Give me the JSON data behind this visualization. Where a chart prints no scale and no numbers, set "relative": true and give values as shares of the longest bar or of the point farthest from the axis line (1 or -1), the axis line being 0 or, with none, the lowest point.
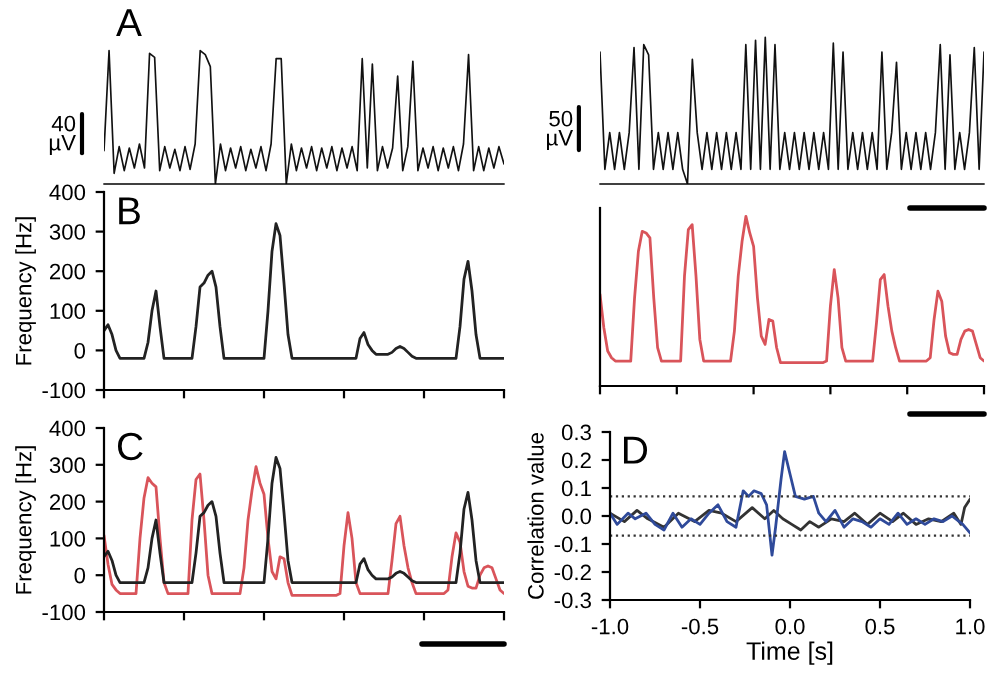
{
  "chart_data": [
    {
      "type": "line",
      "title": "A",
      "relative": true,
      "annotations": [
        "40\nµV"
      ],
      "tick_labels": false,
      "categories": [
        null,
        null,
        null,
        null,
        null,
        null,
        null,
        null,
        null,
        null,
        null,
        null,
        null,
        null,
        null,
        null,
        null,
        null,
        null,
        null,
        null,
        null,
        null,
        null,
        null,
        null,
        null,
        null,
        null,
        null,
        null,
        null,
        null,
        null,
        null,
        null,
        null,
        null,
        null,
        null,
        null,
        null,
        null,
        null,
        null,
        null,
        null,
        null,
        null,
        null,
        null,
        null,
        null,
        null,
        null,
        null,
        null,
        null,
        null,
        null,
        null,
        null,
        null,
        null,
        null,
        null,
        null,
        null,
        null,
        null,
        null,
        null,
        null,
        null,
        null,
        null,
        null,
        null,
        null,
        null
      ],
      "series": [
        {
          "color": "#111111",
          "values": [
            0.25,
            1.0,
            0.08,
            0.28,
            0.1,
            0.27,
            0.12,
            0.3,
            0.12,
            0.98,
            0.95,
            0.1,
            0.28,
            0.12,
            0.26,
            0.1,
            0.28,
            0.11,
            0.3,
            1.0,
            0.97,
            0.88,
            0.0,
            0.3,
            0.1,
            0.27,
            0.12,
            0.28,
            0.1,
            0.26,
            0.12,
            0.28,
            0.1,
            0.3,
            0.94,
            0.94,
            0.0,
            0.3,
            0.1,
            0.27,
            0.12,
            0.28,
            0.1,
            0.27,
            0.12,
            0.28,
            0.1,
            0.27,
            0.12,
            0.28,
            0.1,
            0.94,
            0.12,
            0.9,
            0.1,
            0.28,
            0.12,
            0.27,
            0.81,
            0.1,
            0.28,
            0.92,
            0.1,
            0.27,
            0.12,
            0.28,
            0.1,
            0.27,
            0.12,
            0.28,
            0.1,
            0.3,
            0.97,
            0.1,
            0.28,
            0.1,
            0.27,
            0.12,
            0.28,
            0.15
          ]
        }
      ]
    },
    {
      "type": "line",
      "relative": true,
      "annotations": [
        "50\nµV"
      ],
      "tick_labels": false,
      "categories": [
        null,
        null,
        null,
        null,
        null,
        null,
        null,
        null,
        null,
        null,
        null,
        null,
        null,
        null,
        null,
        null,
        null,
        null,
        null,
        null,
        null,
        null,
        null,
        null,
        null,
        null,
        null,
        null,
        null,
        null,
        null,
        null,
        null,
        null,
        null,
        null,
        null,
        null,
        null,
        null,
        null,
        null,
        null,
        null,
        null,
        null,
        null,
        null,
        null,
        null,
        null,
        null,
        null,
        null,
        null,
        null,
        null,
        null,
        null,
        null,
        null,
        null,
        null,
        null,
        null,
        null,
        null,
        null,
        null,
        null,
        null,
        null,
        null,
        null,
        null,
        null,
        null,
        null,
        null,
        null
      ],
      "series": [
        {
          "color": "#111111",
          "values": [
            0.9,
            0.1,
            0.35,
            0.1,
            0.35,
            0.1,
            0.35,
            0.93,
            0.1,
            0.95,
            0.88,
            0.1,
            0.35,
            0.1,
            0.35,
            0.1,
            0.35,
            0.1,
            0.0,
            0.85,
            0.35,
            0.1,
            0.35,
            0.1,
            0.35,
            0.1,
            0.35,
            0.1,
            0.35,
            0.1,
            0.95,
            0.1,
            0.98,
            0.1,
            1.0,
            0.1,
            0.95,
            0.1,
            0.35,
            0.1,
            0.35,
            0.1,
            0.35,
            0.1,
            0.35,
            0.1,
            0.35,
            0.1,
            0.96,
            0.1,
            0.9,
            0.1,
            0.35,
            0.1,
            0.35,
            0.1,
            0.35,
            0.1,
            0.9,
            0.1,
            0.35,
            0.83,
            0.1,
            0.35,
            0.1,
            0.35,
            0.1,
            0.35,
            0.1,
            0.35,
            0.95,
            0.1,
            0.88,
            0.1,
            0.35,
            0.1,
            0.35,
            0.93,
            0.1,
            0.9
          ]
        }
      ]
    },
    {
      "type": "line",
      "title": "B",
      "ylabel": "Frequency [Hz]",
      "ylim": [
        -100,
        400
      ],
      "yticks": [
        -100,
        0,
        100,
        200,
        300,
        400
      ],
      "tick_labels": "y",
      "categories": [
        null,
        null,
        null,
        null,
        null,
        null,
        null,
        null,
        null,
        null,
        null,
        null,
        null,
        null,
        null,
        null,
        null,
        null,
        null,
        null,
        null,
        null,
        null,
        null,
        null,
        null,
        null,
        null,
        null,
        null,
        null,
        null,
        null,
        null,
        null,
        null,
        null,
        null,
        null,
        null,
        null,
        null,
        null,
        null,
        null,
        null,
        null,
        null,
        null,
        null,
        null,
        null,
        null,
        null,
        null,
        null,
        null,
        null,
        null,
        null,
        null,
        null,
        null,
        null,
        null,
        null,
        null,
        null,
        null,
        null,
        null,
        null,
        null,
        null,
        null,
        null,
        null,
        null,
        null,
        null,
        null,
        null,
        null,
        null,
        null,
        null,
        null,
        null,
        null,
        null,
        null,
        null,
        null,
        null,
        null,
        null,
        null,
        null,
        null,
        null,
        null
      ],
      "series": [
        {
          "color": "#222222",
          "values": [
            50,
            65,
            40,
            0,
            -20,
            -20,
            -20,
            -20,
            -20,
            -20,
            -20,
            20,
            100,
            150,
            60,
            -20,
            -20,
            -20,
            -20,
            -20,
            -20,
            -20,
            -20,
            60,
            160,
            170,
            190,
            200,
            160,
            60,
            -20,
            -20,
            -20,
            -20,
            -20,
            -20,
            -20,
            -20,
            -20,
            -20,
            -20,
            100,
            250,
            320,
            290,
            170,
            40,
            -20,
            -20,
            -20,
            -20,
            -20,
            -20,
            -20,
            -20,
            -20,
            -20,
            -20,
            -20,
            -20,
            -20,
            -20,
            -20,
            -20,
            30,
            45,
            15,
            0,
            -10,
            -10,
            -10,
            -10,
            -5,
            5,
            10,
            5,
            -5,
            -15,
            -20,
            -20,
            -20,
            -20,
            -20,
            -20,
            -20,
            -20,
            -20,
            -20,
            -20,
            60,
            180,
            225,
            150,
            40,
            -20,
            -20,
            -20,
            -20,
            -20,
            -20,
            -20
          ]
        }
      ]
    },
    {
      "type": "line",
      "relative": true,
      "tick_labels": false,
      "categories": [
        null,
        null,
        null,
        null,
        null,
        null,
        null,
        null,
        null,
        null,
        null,
        null,
        null,
        null,
        null,
        null,
        null,
        null,
        null,
        null,
        null,
        null,
        null,
        null,
        null,
        null,
        null,
        null,
        null,
        null,
        null,
        null,
        null,
        null,
        null,
        null,
        null,
        null,
        null,
        null,
        null,
        null,
        null,
        null,
        null,
        null,
        null,
        null,
        null,
        null,
        null,
        null,
        null,
        null,
        null,
        null,
        null,
        null,
        null,
        null,
        null,
        null,
        null,
        null,
        null,
        null,
        null,
        null,
        null,
        null,
        null,
        null,
        null,
        null,
        null,
        null,
        null,
        null,
        null,
        null,
        null,
        null,
        null,
        null,
        null,
        null,
        null,
        null,
        null,
        null,
        null,
        null,
        null,
        null,
        null,
        null,
        null,
        null,
        null,
        null,
        null
      ],
      "series": [
        {
          "color": "#d9545a",
          "values": [
            0.53,
            0.33,
            0.19,
            0.15,
            0.13,
            0.13,
            0.13,
            0.13,
            0.13,
            0.51,
            0.79,
            0.91,
            0.9,
            0.87,
            0.51,
            0.21,
            0.13,
            0.13,
            0.13,
            0.13,
            0.13,
            0.13,
            0.64,
            0.92,
            0.95,
            0.64,
            0.26,
            0.13,
            0.13,
            0.13,
            0.13,
            0.13,
            0.13,
            0.13,
            0.13,
            0.31,
            0.64,
            0.85,
            1.0,
            0.9,
            0.82,
            0.51,
            0.28,
            0.23,
            0.38,
            0.37,
            0.21,
            0.12,
            0.12,
            0.12,
            0.12,
            0.12,
            0.12,
            0.12,
            0.12,
            0.12,
            0.12,
            0.12,
            0.12,
            0.13,
            0.46,
            0.68,
            0.51,
            0.21,
            0.13,
            0.13,
            0.13,
            0.13,
            0.13,
            0.13,
            0.13,
            0.13,
            0.36,
            0.62,
            0.65,
            0.46,
            0.31,
            0.21,
            0.13,
            0.13,
            0.13,
            0.13,
            0.13,
            0.13,
            0.13,
            0.13,
            0.15,
            0.38,
            0.55,
            0.49,
            0.28,
            0.18,
            0.17,
            0.17,
            0.26,
            0.31,
            0.32,
            0.31,
            0.23,
            0.15,
            0.13
          ]
        }
      ]
    },
    {
      "type": "line",
      "title": "C",
      "ylabel": "Frequency [Hz]",
      "ylim": [
        -100,
        400
      ],
      "yticks": [
        -100,
        0,
        100,
        200,
        300,
        400
      ],
      "tick_labels": "y",
      "categories": [
        null,
        null,
        null,
        null,
        null,
        null,
        null,
        null,
        null,
        null,
        null,
        null,
        null,
        null,
        null,
        null,
        null,
        null,
        null,
        null,
        null,
        null,
        null,
        null,
        null,
        null,
        null,
        null,
        null,
        null,
        null,
        null,
        null,
        null,
        null,
        null,
        null,
        null,
        null,
        null,
        null,
        null,
        null,
        null,
        null,
        null,
        null,
        null,
        null,
        null,
        null,
        null,
        null,
        null,
        null,
        null,
        null,
        null,
        null,
        null,
        null,
        null,
        null,
        null,
        null,
        null,
        null,
        null,
        null,
        null,
        null,
        null,
        null,
        null,
        null,
        null,
        null,
        null,
        null,
        null,
        null,
        null,
        null,
        null,
        null,
        null,
        null,
        null,
        null,
        null,
        null,
        null,
        null,
        null,
        null,
        null,
        null,
        null,
        null,
        null,
        null
      ],
      "series": [
        {
          "color": "#d9545a",
          "values": [
            108,
            30,
            -25,
            -40,
            -50,
            -50,
            -50,
            -50,
            -50,
            100,
            210,
            265,
            250,
            240,
            100,
            -20,
            -50,
            -50,
            -50,
            -50,
            -50,
            -50,
            150,
            260,
            275,
            150,
            0,
            -50,
            -50,
            -50,
            -50,
            -50,
            -50,
            -50,
            -50,
            20,
            150,
            230,
            295,
            250,
            220,
            100,
            10,
            -10,
            50,
            45,
            -20,
            -55,
            -55,
            -55,
            -55,
            -55,
            -55,
            -55,
            -55,
            -55,
            -55,
            -55,
            -55,
            -50,
            80,
            170,
            100,
            -20,
            -50,
            -50,
            -50,
            -50,
            -50,
            -50,
            -50,
            -50,
            40,
            140,
            160,
            80,
            20,
            -20,
            -50,
            -50,
            -50,
            -50,
            -50,
            -50,
            -50,
            -50,
            -40,
            50,
            115,
            90,
            10,
            -30,
            -35,
            -35,
            0,
            20,
            25,
            20,
            -10,
            -40,
            -50
          ]
        },
        {
          "color": "#222222",
          "values": [
            50,
            65,
            40,
            0,
            -20,
            -20,
            -20,
            -20,
            -20,
            -20,
            -20,
            20,
            100,
            150,
            60,
            -20,
            -20,
            -20,
            -20,
            -20,
            -20,
            -20,
            -20,
            60,
            160,
            170,
            190,
            200,
            160,
            60,
            -20,
            -20,
            -20,
            -20,
            -20,
            -20,
            -20,
            -20,
            -20,
            -20,
            -20,
            100,
            250,
            320,
            290,
            170,
            40,
            -20,
            -20,
            -20,
            -20,
            -20,
            -20,
            -20,
            -20,
            -20,
            -20,
            -20,
            -20,
            -20,
            -20,
            -20,
            -20,
            -20,
            30,
            45,
            15,
            0,
            -10,
            -10,
            -10,
            -10,
            -5,
            5,
            10,
            5,
            -5,
            -15,
            -20,
            -20,
            -20,
            -20,
            -20,
            -20,
            -20,
            -20,
            -20,
            -20,
            -20,
            60,
            180,
            225,
            150,
            40,
            -20,
            -20,
            -20,
            -20,
            -20,
            -20,
            -20
          ]
        }
      ]
    },
    {
      "type": "line",
      "title": "D",
      "xlabel": "Time [s]",
      "ylabel": "Correlation value",
      "xlim": [
        -1.0,
        1.0
      ],
      "ylim": [
        -0.3,
        0.3
      ],
      "xticks": [
        {
          "value": -1.0,
          "label": "-1.0"
        },
        -0.5,
        {
          "value": 0.0,
          "label": "0.0"
        },
        0.5,
        {
          "value": 1.0,
          "label": "1.0"
        }
      ],
      "yticks": [
        -0.3,
        -0.2,
        -0.1,
        {
          "value": 0.0,
          "label": "0.0"
        },
        0.1,
        0.2,
        0.3
      ],
      "ref_lines": [
        {
          "axis": "y",
          "value": 0.07,
          "line_style": "dotted",
          "color": "#333333"
        },
        {
          "axis": "y",
          "value": -0.07,
          "line_style": "dotted",
          "color": "#333333"
        }
      ],
      "series": [
        {
          "color": "#333333",
          "x": [
            -1.0,
            -0.92,
            -0.85,
            -0.79,
            -0.7,
            -0.62,
            -0.53,
            -0.45,
            -0.38,
            -0.3,
            -0.21,
            -0.14,
            -0.09,
            -0.04,
            0.01,
            0.06,
            0.11,
            0.16,
            0.23,
            0.3,
            0.36,
            0.43,
            0.5,
            0.57,
            0.63,
            0.7,
            0.77,
            0.84,
            0.91,
            0.95,
            0.97,
            1.0
          ],
          "values": [
            0.01,
            -0.02,
            0.02,
            -0.01,
            -0.04,
            0.01,
            -0.02,
            0.02,
            0.01,
            -0.02,
            0.03,
            -0.01,
            0.02,
            -0.01,
            -0.03,
            -0.05,
            -0.02,
            -0.04,
            -0.01,
            -0.02,
            0.01,
            -0.03,
            0.01,
            -0.02,
            0.01,
            -0.03,
            -0.01,
            -0.02,
            0.01,
            -0.03,
            0.03,
            0.06
          ]
        },
        {
          "color": "#2f4a9a",
          "x": [
            -1.0,
            -0.96,
            -0.9,
            -0.86,
            -0.8,
            -0.75,
            -0.7,
            -0.65,
            -0.6,
            -0.55,
            -0.5,
            -0.45,
            -0.4,
            -0.35,
            -0.3,
            -0.26,
            -0.23,
            -0.2,
            -0.16,
            -0.13,
            -0.1,
            -0.08,
            -0.05,
            -0.03,
            0.0,
            0.03,
            0.08,
            0.13,
            0.16,
            0.2,
            0.25,
            0.3,
            0.35,
            0.4,
            0.45,
            0.5,
            0.55,
            0.6,
            0.65,
            0.7,
            0.75,
            0.8,
            0.85,
            0.9,
            0.96,
            1.0
          ],
          "values": [
            0.01,
            -0.03,
            0.01,
            -0.01,
            0.01,
            -0.03,
            -0.05,
            0.01,
            -0.04,
            -0.01,
            -0.03,
            0.01,
            0.04,
            -0.02,
            -0.04,
            0.09,
            0.07,
            0.09,
            0.08,
            0.04,
            -0.14,
            -0.04,
            0.13,
            0.23,
            0.15,
            0.07,
            0.06,
            0.07,
            0.01,
            -0.02,
            0.02,
            -0.04,
            -0.01,
            -0.02,
            -0.04,
            -0.01,
            -0.03,
            0.01,
            -0.03,
            -0.01,
            -0.03,
            -0.01,
            -0.02,
            0.0,
            -0.03,
            -0.06
          ]
        }
      ]
    }
  ]
}
